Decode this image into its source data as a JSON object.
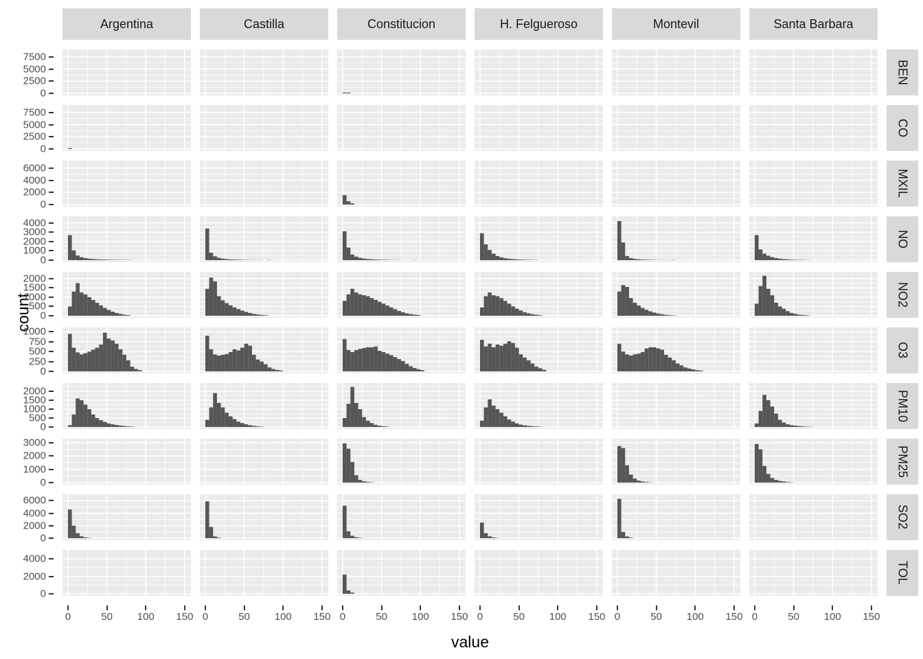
{
  "chart_data": {
    "type": "bar",
    "subtype": "faceted-histogram-grid",
    "title": "",
    "xlabel": "value",
    "ylabel": "count",
    "legend": "none",
    "grid": "on",
    "x_ticks": [
      0,
      50,
      100,
      150
    ],
    "x_domain": [
      -7,
      158
    ],
    "bin_width": 5,
    "bin_start": 0,
    "facet_columns": [
      "Argentina",
      "Castilla",
      "Constitucion",
      "H. Felgueroso",
      "Montevil",
      "Santa Barbara"
    ],
    "facet_rows": [
      {
        "label": "BEN",
        "y_ticks": [
          0,
          2500,
          5000,
          7500
        ],
        "y_max": 8600,
        "cells": {
          "Constitucion": [
            160,
            140
          ]
        }
      },
      {
        "label": "CO",
        "y_ticks": [
          0,
          2500,
          5000,
          7500
        ],
        "y_max": 8600,
        "cells": {
          "Argentina": [
            180
          ]
        }
      },
      {
        "label": "MXIL",
        "y_ticks": [
          0,
          2000,
          4000,
          6000
        ],
        "y_max": 6900,
        "cells": {
          "Constitucion": [
            1550,
            550,
            200
          ]
        }
      },
      {
        "label": "NO",
        "y_ticks": [
          0,
          1000,
          2000,
          3000,
          4000
        ],
        "y_max": 4500,
        "cells": {
          "Argentina": [
            2700,
            1050,
            500,
            320,
            220,
            160,
            120,
            90,
            70,
            60,
            50,
            40,
            35,
            30,
            25,
            20,
            15
          ],
          "Castilla": [
            3400,
            800,
            420,
            250,
            160,
            110,
            80,
            60,
            45,
            35,
            25,
            20,
            15,
            12,
            10,
            0,
            25
          ],
          "Constitucion": [
            3100,
            1350,
            600,
            380,
            250,
            170,
            120,
            90,
            70,
            50,
            40,
            30,
            25,
            20,
            15,
            0,
            0,
            0,
            20
          ],
          "H. Felgueroso": [
            2900,
            1700,
            1100,
            700,
            450,
            300,
            210,
            150,
            110,
            80,
            60,
            45,
            35,
            25,
            20
          ],
          "Montevil": [
            4200,
            1900,
            450,
            220,
            130,
            90,
            60,
            45,
            35,
            25,
            20,
            15,
            12,
            10,
            25
          ],
          "Santa Barbara": [
            2700,
            1150,
            700,
            480,
            330,
            230,
            160,
            110,
            80,
            55,
            40,
            30,
            20,
            15,
            10
          ]
        }
      },
      {
        "label": "NO2",
        "y_ticks": [
          0,
          500,
          1000,
          1500,
          2000
        ],
        "y_max": 2250,
        "cells": {
          "Argentina": [
            500,
            1300,
            1750,
            1250,
            1150,
            1000,
            850,
            700,
            550,
            420,
            310,
            220,
            150,
            100,
            60,
            35
          ],
          "Castilla": [
            1450,
            2050,
            1850,
            1050,
            830,
            680,
            560,
            450,
            360,
            280,
            210,
            150,
            100,
            70,
            45,
            25
          ],
          "Constitucion": [
            800,
            1150,
            1450,
            1250,
            1150,
            1100,
            1050,
            950,
            850,
            750,
            650,
            550,
            450,
            350,
            260,
            190,
            130,
            90,
            60,
            40
          ],
          "H. Felgueroso": [
            450,
            1050,
            1250,
            1100,
            1050,
            950,
            800,
            650,
            500,
            380,
            280,
            190,
            130,
            85,
            55,
            30
          ],
          "Montevil": [
            1300,
            1650,
            1550,
            950,
            700,
            550,
            420,
            320,
            240,
            170,
            120,
            80,
            50,
            30,
            20
          ],
          "Santa Barbara": [
            650,
            1600,
            2150,
            1450,
            1100,
            700,
            500,
            380,
            250,
            150,
            100,
            60,
            40,
            25
          ]
        }
      },
      {
        "label": "O3",
        "y_ticks": [
          0,
          250,
          500,
          750,
          1000
        ],
        "y_max": 1060,
        "cells": {
          "Argentina": [
            950,
            600,
            480,
            430,
            460,
            500,
            550,
            600,
            680,
            980,
            830,
            780,
            700,
            560,
            420,
            280,
            120,
            60,
            30
          ],
          "Castilla": [
            900,
            560,
            430,
            400,
            420,
            440,
            490,
            560,
            530,
            600,
            700,
            650,
            420,
            300,
            250,
            180,
            100,
            60,
            35,
            20
          ],
          "Constitucion": [
            820,
            540,
            490,
            540,
            570,
            590,
            610,
            610,
            630,
            520,
            490,
            450,
            410,
            360,
            310,
            260,
            190,
            130,
            85,
            55,
            30
          ],
          "H. Felgueroso": [
            800,
            630,
            700,
            610,
            680,
            650,
            700,
            760,
            720,
            600,
            430,
            350,
            280,
            200,
            120,
            80,
            40
          ],
          "Montevil": [
            700,
            500,
            430,
            400,
            430,
            450,
            490,
            580,
            610,
            610,
            580,
            550,
            420,
            350,
            280,
            200,
            150,
            100,
            70,
            50,
            30,
            20
          ]
        }
      },
      {
        "label": "PM10",
        "y_ticks": [
          0,
          500,
          1000,
          1500,
          2000
        ],
        "y_max": 2350,
        "cells": {
          "Argentina": [
            100,
            700,
            1600,
            1500,
            1250,
            1000,
            700,
            500,
            380,
            280,
            200,
            150,
            110,
            80,
            50,
            30,
            20
          ],
          "Castilla": [
            400,
            1100,
            1900,
            1350,
            1100,
            800,
            600,
            450,
            300,
            220,
            150,
            100,
            60,
            35,
            20
          ],
          "Constitucion": [
            500,
            1300,
            2250,
            1350,
            1000,
            550,
            350,
            220,
            120,
            70,
            40,
            20
          ],
          "H. Felgueroso": [
            350,
            1100,
            1550,
            1200,
            1000,
            800,
            600,
            420,
            300,
            200,
            130,
            90,
            60,
            40,
            25,
            15
          ],
          "Santa Barbara": [
            200,
            900,
            1800,
            1500,
            1150,
            750,
            400,
            250,
            150,
            100,
            70,
            50,
            30,
            20,
            10
          ]
        }
      },
      {
        "label": "PM25",
        "y_ticks": [
          0,
          1000,
          2000,
          3000
        ],
        "y_max": 3150,
        "cells": {
          "Constitucion": [
            2950,
            2550,
            1550,
            550,
            200,
            90,
            50,
            25
          ],
          "Montevil": [
            2750,
            2600,
            1300,
            600,
            300,
            150,
            80,
            40,
            20
          ],
          "Santa Barbara": [
            2900,
            2500,
            1250,
            650,
            350,
            200,
            120,
            80,
            40,
            20
          ]
        }
      },
      {
        "label": "SO2",
        "y_ticks": [
          0,
          2000,
          4000,
          6000
        ],
        "y_max": 6700,
        "cells": {
          "Argentina": [
            4600,
            2000,
            800,
            300,
            120,
            50
          ],
          "Castilla": [
            5900,
            1800,
            280,
            80
          ],
          "Constitucion": [
            5200,
            1100,
            380,
            150,
            60
          ],
          "H. Felgueroso": [
            2500,
            800,
            300,
            110,
            40
          ],
          "Montevil": [
            6300,
            1000,
            280,
            80
          ]
        }
      },
      {
        "label": "TOL",
        "y_ticks": [
          0,
          2000,
          4000
        ],
        "y_max": 4800,
        "cells": {
          "Constitucion": [
            2200,
            380,
            130
          ]
        }
      }
    ],
    "colors": {
      "bar": "#565656",
      "panel_bg": "#EBEBEB",
      "strip_bg": "#D9D9D9",
      "gridline": "#FFFFFF",
      "axis_text": "#4D4D4D",
      "tick_mark": "#333333",
      "axis_title": "#000000"
    }
  }
}
